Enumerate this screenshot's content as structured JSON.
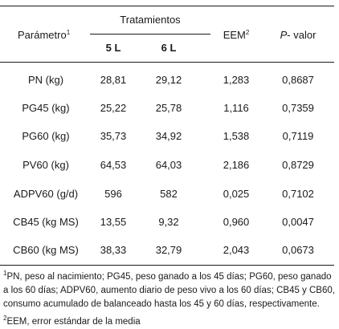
{
  "header": {
    "parametro": "Parámetro",
    "parametro_sup": "1",
    "tratamientos": "Tratamientos",
    "t1": "5 L",
    "t2": "6 L",
    "eem": "EEM",
    "eem_sup": "2",
    "pvalor_p": "P",
    "pvalor_rest": "- valor"
  },
  "rows": [
    {
      "param": "PN (kg)",
      "t1": "28,81",
      "t2": "29,12",
      "eem": "1,283",
      "p": "0,8687"
    },
    {
      "param": "PG45 (kg)",
      "t1": "25,22",
      "t2": "25,78",
      "eem": "1,116",
      "p": "0,7359"
    },
    {
      "param": "PG60 (kg)",
      "t1": "35,73",
      "t2": "34,92",
      "eem": "1,538",
      "p": "0,7119"
    },
    {
      "param": "PV60 (kg)",
      "t1": "64,53",
      "t2": "64,03",
      "eem": "2,186",
      "p": "0,8729"
    },
    {
      "param": "ADPV60 (g/d)",
      "t1": "596",
      "t2": "582",
      "eem": "0,025",
      "p": "0,7102"
    },
    {
      "param": "CB45 (kg MS)",
      "t1": "13,55",
      "t2": "9,32",
      "eem": "0,960",
      "p": "0,0047"
    },
    {
      "param": "CB60 (kg MS)",
      "t1": "38,33",
      "t2": "32,79",
      "eem": "2,043",
      "p": "0,0673"
    }
  ],
  "footnotes": {
    "n1_sup": "1",
    "n1": "PN, peso al nacimiento; PG45, peso ganado a los 45 días; PG60, peso ganado a los 60 días; ADPV60, aumento diario de peso vivo a los 60 días; CB45 y CB60, consumo acumulado de balanceado hasta los 45 y 60 días, respectivamente.",
    "n2_sup": "2",
    "n2": "EEM, error estándar de la media"
  }
}
